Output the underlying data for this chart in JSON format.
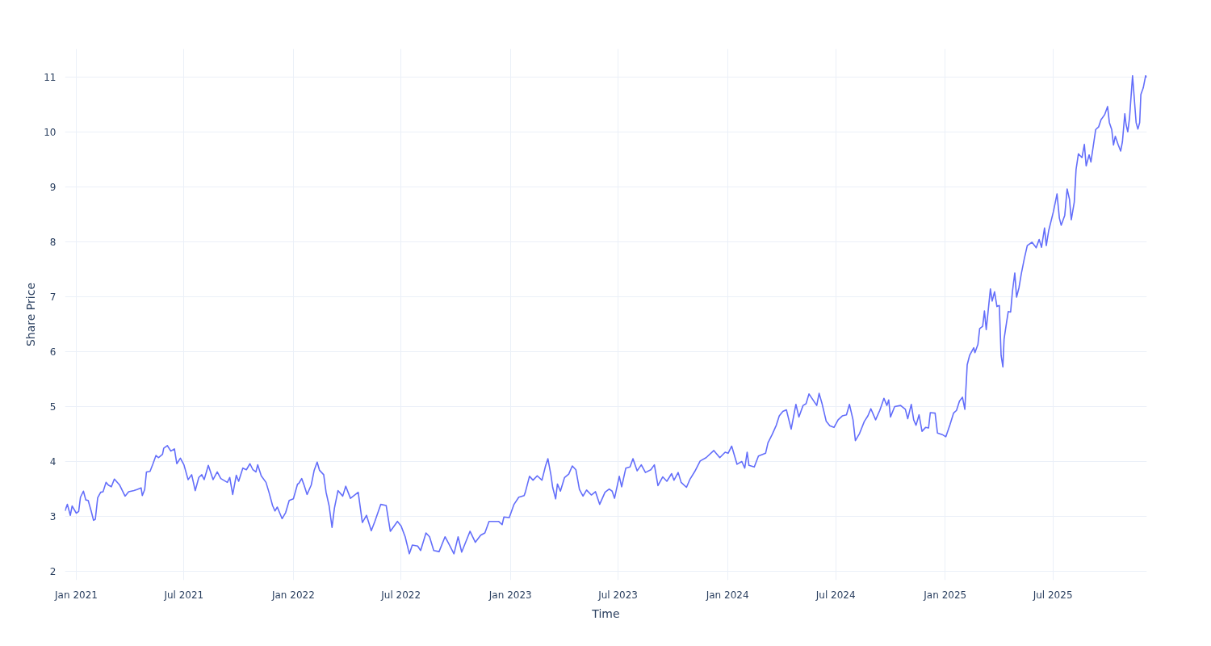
{
  "chart_data": {
    "type": "line",
    "xlabel": "Time",
    "ylabel": "Share Price",
    "x": [
      "2020-12-13",
      "2020-12-17",
      "2020-12-22",
      "2020-12-25",
      "2021-01-01",
      "2021-01-05",
      "2021-01-08",
      "2021-01-13",
      "2021-01-17",
      "2021-01-21",
      "2021-01-26",
      "2021-01-30",
      "2021-02-02",
      "2021-02-06",
      "2021-02-11",
      "2021-02-15",
      "2021-02-20",
      "2021-02-24",
      "2021-03-01",
      "2021-03-06",
      "2021-03-15",
      "2021-03-24",
      "2021-03-30",
      "2021-04-08",
      "2021-04-13",
      "2021-04-20",
      "2021-04-22",
      "2021-04-26",
      "2021-04-29",
      "2021-05-05",
      "2021-05-10",
      "2021-05-15",
      "2021-05-19",
      "2021-05-26",
      "2021-05-28",
      "2021-06-03",
      "2021-06-09",
      "2021-06-15",
      "2021-06-19",
      "2021-06-25",
      "2021-07-01",
      "2021-07-08",
      "2021-07-14",
      "2021-07-20",
      "2021-07-26",
      "2021-07-31",
      "2021-08-04",
      "2021-08-11",
      "2021-08-19",
      "2021-08-26",
      "2021-09-01",
      "2021-09-12",
      "2021-09-16",
      "2021-09-21",
      "2021-09-27",
      "2021-10-01",
      "2021-10-08",
      "2021-10-14",
      "2021-10-20",
      "2021-10-25",
      "2021-10-30",
      "2021-11-02",
      "2021-11-08",
      "2021-11-16",
      "2021-11-21",
      "2021-11-27",
      "2021-12-01",
      "2021-12-05",
      "2021-12-13",
      "2021-12-19",
      "2021-12-25",
      "2022-01-01",
      "2022-01-08",
      "2022-01-10",
      "2022-01-15",
      "2022-01-19",
      "2022-01-24",
      "2022-01-31",
      "2022-02-05",
      "2022-02-10",
      "2022-02-14",
      "2022-02-21",
      "2022-02-25",
      "2022-03-02",
      "2022-03-07",
      "2022-03-11",
      "2022-03-17",
      "2022-03-25",
      "2022-03-30",
      "2022-04-07",
      "2022-04-20",
      "2022-04-27",
      "2022-05-04",
      "2022-05-12",
      "2022-05-18",
      "2022-05-28",
      "2022-06-06",
      "2022-06-13",
      "2022-06-25",
      "2022-07-01",
      "2022-07-08",
      "2022-07-15",
      "2022-07-20",
      "2022-07-29",
      "2022-08-03",
      "2022-08-12",
      "2022-08-18",
      "2022-08-25",
      "2022-09-03",
      "2022-09-13",
      "2022-09-19",
      "2022-09-28",
      "2022-10-05",
      "2022-10-11",
      "2022-10-25",
      "2022-11-03",
      "2022-11-12",
      "2022-11-19",
      "2022-11-26",
      "2022-12-12",
      "2022-12-18",
      "2022-12-21",
      "2022-12-30",
      "2023-01-07",
      "2023-01-15",
      "2023-01-24",
      "2023-01-26",
      "2023-02-02",
      "2023-02-08",
      "2023-02-15",
      "2023-02-23",
      "2023-03-01",
      "2023-03-05",
      "2023-03-10",
      "2023-03-13",
      "2023-03-18",
      "2023-03-21",
      "2023-03-26",
      "2023-04-02",
      "2023-04-09",
      "2023-04-15",
      "2023-04-21",
      "2023-04-27",
      "2023-05-03",
      "2023-05-09",
      "2023-05-17",
      "2023-05-24",
      "2023-05-31",
      "2023-06-09",
      "2023-06-16",
      "2023-06-21",
      "2023-06-25",
      "2023-07-03",
      "2023-07-07",
      "2023-07-14",
      "2023-07-21",
      "2023-07-26",
      "2023-08-02",
      "2023-08-09",
      "2023-08-16",
      "2023-08-25",
      "2023-08-31",
      "2023-09-06",
      "2023-09-14",
      "2023-09-21",
      "2023-09-29",
      "2023-10-03",
      "2023-10-10",
      "2023-10-15",
      "2023-10-24",
      "2023-10-30",
      "2023-11-07",
      "2023-11-16",
      "2023-11-26",
      "2023-12-09",
      "2023-12-19",
      "2023-12-28",
      "2024-01-02",
      "2024-01-08",
      "2024-01-17",
      "2024-01-25",
      "2024-01-30",
      "2024-02-03",
      "2024-02-06",
      "2024-02-15",
      "2024-02-22",
      "2024-03-05",
      "2024-03-09",
      "2024-03-16",
      "2024-03-23",
      "2024-03-28",
      "2024-04-03",
      "2024-04-09",
      "2024-04-17",
      "2024-04-25",
      "2024-04-30",
      "2024-05-07",
      "2024-05-12",
      "2024-05-17",
      "2024-05-25",
      "2024-05-30",
      "2024-06-03",
      "2024-06-08",
      "2024-06-15",
      "2024-06-21",
      "2024-06-28",
      "2024-07-05",
      "2024-07-12",
      "2024-07-19",
      "2024-07-24",
      "2024-07-30",
      "2024-08-03",
      "2024-08-10",
      "2024-08-18",
      "2024-08-24",
      "2024-08-29",
      "2024-09-06",
      "2024-09-13",
      "2024-09-20",
      "2024-09-25",
      "2024-09-28",
      "2024-10-01",
      "2024-10-08",
      "2024-10-18",
      "2024-10-26",
      "2024-10-30",
      "2024-11-05",
      "2024-11-09",
      "2024-11-13",
      "2024-11-18",
      "2024-11-23",
      "2024-11-29",
      "2024-12-04",
      "2024-12-07",
      "2024-12-15",
      "2024-12-19",
      "2024-12-27",
      "2025-01-02",
      "2025-01-09",
      "2025-01-15",
      "2025-01-20",
      "2025-01-25",
      "2025-01-30",
      "2025-02-03",
      "2025-02-07",
      "2025-02-11",
      "2025-02-18",
      "2025-02-20",
      "2025-02-25",
      "2025-02-28",
      "2025-03-05",
      "2025-03-08",
      "2025-03-11",
      "2025-03-15",
      "2025-03-18",
      "2025-03-21",
      "2025-03-25",
      "2025-03-29",
      "2025-04-02",
      "2025-04-05",
      "2025-04-08",
      "2025-04-10",
      "2025-04-14",
      "2025-04-17",
      "2025-04-21",
      "2025-04-24",
      "2025-04-28",
      "2025-05-01",
      "2025-05-05",
      "2025-05-09",
      "2025-05-14",
      "2025-05-19",
      "2025-05-27",
      "2025-06-03",
      "2025-06-08",
      "2025-06-12",
      "2025-06-17",
      "2025-06-20",
      "2025-06-24",
      "2025-07-02",
      "2025-07-08",
      "2025-07-12",
      "2025-07-15",
      "2025-07-21",
      "2025-07-25",
      "2025-07-29",
      "2025-08-01",
      "2025-08-06",
      "2025-08-09",
      "2025-08-13",
      "2025-08-19",
      "2025-08-23",
      "2025-08-26",
      "2025-08-31",
      "2025-09-03",
      "2025-09-11",
      "2025-09-16",
      "2025-09-20",
      "2025-09-26",
      "2025-10-01",
      "2025-10-04",
      "2025-10-08",
      "2025-10-11",
      "2025-10-14",
      "2025-10-19",
      "2025-10-23",
      "2025-10-26",
      "2025-10-30",
      "2025-11-01",
      "2025-11-04",
      "2025-11-07",
      "2025-11-12",
      "2025-11-18",
      "2025-11-21",
      "2025-11-24",
      "2025-11-26",
      "2025-11-30",
      "2025-12-04",
      "2025-12-06"
    ],
    "series": [
      {
        "color": "#636efa",
        "values": [
          3.1,
          3.22,
          3.02,
          3.19,
          3.06,
          3.09,
          3.35,
          3.46,
          3.3,
          3.29,
          3.1,
          2.93,
          2.95,
          3.34,
          3.44,
          3.45,
          3.62,
          3.57,
          3.54,
          3.68,
          3.57,
          3.37,
          3.45,
          3.47,
          3.49,
          3.52,
          3.38,
          3.49,
          3.81,
          3.82,
          3.96,
          4.11,
          4.07,
          4.13,
          4.24,
          4.29,
          4.19,
          4.23,
          3.96,
          4.06,
          3.94,
          3.67,
          3.76,
          3.47,
          3.71,
          3.76,
          3.67,
          3.93,
          3.67,
          3.81,
          3.69,
          3.62,
          3.71,
          3.4,
          3.75,
          3.64,
          3.88,
          3.85,
          3.96,
          3.85,
          3.81,
          3.94,
          3.74,
          3.62,
          3.44,
          3.2,
          3.1,
          3.17,
          2.96,
          3.07,
          3.29,
          3.32,
          3.59,
          3.6,
          3.69,
          3.57,
          3.4,
          3.57,
          3.84,
          3.99,
          3.84,
          3.76,
          3.44,
          3.2,
          2.8,
          3.15,
          3.47,
          3.37,
          3.55,
          3.33,
          3.44,
          2.89,
          3.02,
          2.74,
          2.91,
          3.22,
          3.2,
          2.73,
          2.91,
          2.83,
          2.63,
          2.32,
          2.48,
          2.46,
          2.38,
          2.7,
          2.63,
          2.38,
          2.36,
          2.63,
          2.51,
          2.32,
          2.63,
          2.35,
          2.73,
          2.53,
          2.66,
          2.7,
          2.91,
          2.91,
          2.85,
          2.99,
          2.98,
          3.22,
          3.35,
          3.38,
          3.44,
          3.73,
          3.66,
          3.74,
          3.66,
          3.92,
          4.05,
          3.76,
          3.53,
          3.32,
          3.59,
          3.46,
          3.71,
          3.77,
          3.92,
          3.85,
          3.49,
          3.37,
          3.48,
          3.39,
          3.45,
          3.22,
          3.44,
          3.5,
          3.46,
          3.33,
          3.73,
          3.54,
          3.88,
          3.9,
          4.05,
          3.83,
          3.94,
          3.8,
          3.85,
          3.94,
          3.56,
          3.72,
          3.64,
          3.78,
          3.66,
          3.8,
          3.62,
          3.53,
          3.68,
          3.82,
          4.01,
          4.07,
          4.2,
          4.07,
          4.17,
          4.15,
          4.28,
          3.95,
          4.0,
          3.88,
          4.17,
          3.93,
          3.9,
          4.1,
          4.15,
          4.34,
          4.49,
          4.66,
          4.83,
          4.91,
          4.94,
          4.59,
          5.04,
          4.81,
          5.02,
          5.05,
          5.23,
          5.1,
          5.02,
          5.24,
          5.05,
          4.73,
          4.65,
          4.62,
          4.76,
          4.83,
          4.85,
          5.04,
          4.76,
          4.38,
          4.51,
          4.73,
          4.83,
          4.96,
          4.76,
          4.93,
          5.15,
          5.02,
          5.12,
          4.81,
          5.0,
          5.02,
          4.95,
          4.78,
          5.04,
          4.76,
          4.66,
          4.85,
          4.55,
          4.62,
          4.61,
          4.89,
          4.88,
          4.52,
          4.49,
          4.45,
          4.67,
          4.88,
          4.93,
          5.1,
          5.17,
          4.95,
          5.76,
          5.93,
          6.07,
          5.98,
          6.13,
          6.42,
          6.46,
          6.74,
          6.4,
          6.82,
          7.14,
          6.92,
          7.09,
          6.82,
          6.84,
          5.93,
          5.72,
          6.23,
          6.52,
          6.73,
          6.72,
          7.09,
          7.43,
          6.99,
          7.16,
          7.42,
          7.69,
          7.93,
          7.99,
          7.89,
          8.04,
          7.9,
          8.25,
          7.93,
          8.2,
          8.55,
          8.87,
          8.43,
          8.3,
          8.48,
          8.96,
          8.77,
          8.4,
          8.72,
          9.31,
          9.6,
          9.53,
          9.77,
          9.38,
          9.58,
          9.45,
          10.04,
          10.09,
          10.22,
          10.31,
          10.46,
          10.17,
          10.04,
          9.76,
          9.92,
          9.76,
          9.65,
          9.82,
          10.33,
          10.14,
          10.0,
          10.26,
          11.02,
          10.17,
          10.05,
          10.17,
          10.68,
          10.8,
          11.02,
          10.99
        ]
      }
    ],
    "xlim": [
      "2020-12-13",
      "2025-12-06"
    ],
    "ylim": [
      1.84,
      11.51
    ],
    "xticks": [
      {
        "value": "2021-01-01",
        "label": "Jan 2021"
      },
      {
        "value": "2021-07-01",
        "label": "Jul 2021"
      },
      {
        "value": "2022-01-01",
        "label": "Jan 2022"
      },
      {
        "value": "2022-07-01",
        "label": "Jul 2022"
      },
      {
        "value": "2023-01-01",
        "label": "Jan 2023"
      },
      {
        "value": "2023-07-01",
        "label": "Jul 2023"
      },
      {
        "value": "2024-01-01",
        "label": "Jan 2024"
      },
      {
        "value": "2024-07-01",
        "label": "Jul 2024"
      },
      {
        "value": "2025-01-01",
        "label": "Jan 2025"
      },
      {
        "value": "2025-07-01",
        "label": "Jul 2025"
      }
    ],
    "yticks": [
      2,
      3,
      4,
      5,
      6,
      7,
      8,
      9,
      10,
      11
    ],
    "grid": true,
    "marker": "none",
    "line_style": "solid"
  }
}
